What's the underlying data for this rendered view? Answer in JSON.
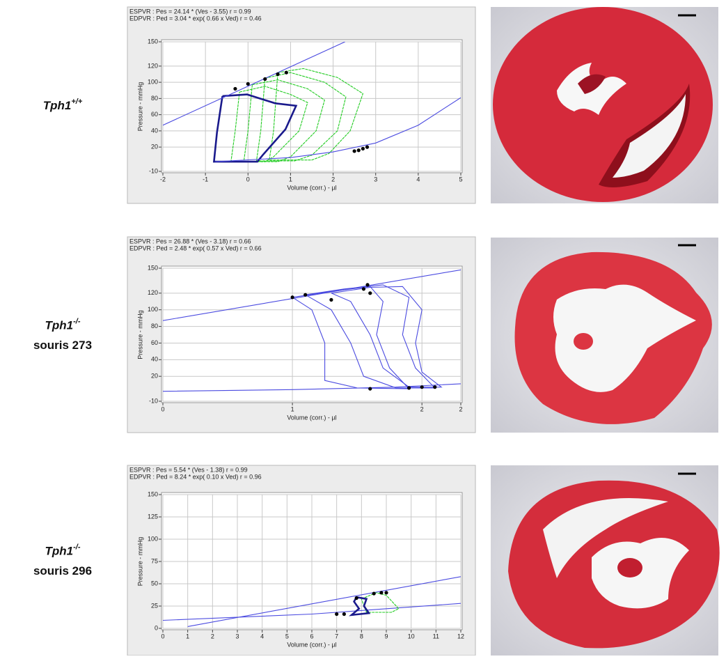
{
  "chart_data": [
    {
      "type": "line",
      "label": {
        "gene": "Tph1",
        "genotype": "+/+"
      },
      "annotations": [
        "ESPVR : Pes = 24.14 * (Ves - 3.55)     r = 0.99",
        "EDPVR : Ped =  3.04 * exp( 0.66 x Ved)     r = 0.46"
      ],
      "xlabel": "Volume (corr.) - µl",
      "ylabel": "Pressure - mmHg",
      "xlim": [
        -2,
        5
      ],
      "ylim": [
        -10,
        150
      ],
      "xticks": [
        -2,
        -1,
        0,
        1,
        2,
        3,
        4,
        5
      ],
      "yticks": [
        -10,
        20,
        40,
        60,
        80,
        100,
        120,
        150
      ],
      "grid": true,
      "series": [
        {
          "style": "line",
          "color": "#22cc22",
          "x": [
            -0.2,
            0.4,
            1.0,
            1.4,
            1.2,
            0.6,
            0.4,
            -0.4,
            -0.3,
            -0.2
          ],
          "values": [
            88,
            95,
            85,
            75,
            40,
            8,
            2,
            2,
            40,
            88
          ]
        },
        {
          "style": "line",
          "color": "#22cc22",
          "x": [
            0.1,
            0.7,
            1.4,
            1.8,
            1.6,
            1.0,
            0.7,
            -0.1,
            0.0,
            0.1
          ],
          "values": [
            97,
            103,
            92,
            78,
            40,
            8,
            2,
            2,
            40,
            97
          ]
        },
        {
          "style": "line",
          "color": "#22cc22",
          "x": [
            0.4,
            1.0,
            1.8,
            2.3,
            2.1,
            1.5,
            1.1,
            0.2,
            0.3,
            0.4
          ],
          "values": [
            105,
            112,
            100,
            82,
            40,
            10,
            3,
            3,
            40,
            105
          ]
        },
        {
          "style": "line",
          "color": "#22cc22",
          "x": [
            0.7,
            1.3,
            2.1,
            2.7,
            2.4,
            1.9,
            1.5,
            0.5,
            0.6,
            0.7
          ],
          "values": [
            112,
            117,
            106,
            86,
            40,
            12,
            4,
            4,
            40,
            112
          ]
        },
        {
          "style": "thick",
          "color": "#1a1a8c",
          "x": [
            -0.6,
            -0.02,
            0.64,
            1.13,
            0.88,
            0.36,
            0.22,
            -0.8,
            -0.73,
            -0.63,
            -0.6
          ],
          "values": [
            83,
            85,
            74,
            71,
            42,
            11,
            2,
            2,
            38,
            73,
            83
          ]
        },
        {
          "style": "line",
          "color": "#4a4ae0",
          "x": [
            -2,
            2.28
          ],
          "values": [
            47,
            150
          ]
        },
        {
          "style": "line",
          "color": "#4a4ae0",
          "x": [
            -0.77,
            1,
            2,
            3,
            4,
            5
          ],
          "values": [
            2,
            7,
            14,
            25,
            47,
            81
          ]
        },
        {
          "style": "markers",
          "color": "#000000",
          "x": [
            -0.3,
            0,
            0.4,
            0.7,
            0.9,
            2.5,
            2.6,
            2.7,
            2.8
          ],
          "values": [
            92,
            98,
            104,
            110,
            112,
            15,
            16,
            18,
            20
          ]
        }
      ]
    },
    {
      "type": "line",
      "label": {
        "gene": "Tph1",
        "genotype": "-/-",
        "mouse": "souris 273"
      },
      "annotations": [
        "ESPVR : Pes = 26.88 * (Ves - 3.18)     r = 0.66",
        "EDPVR : Ped =  2.48 * exp( 0.57 x Ved)     r = 0.66"
      ],
      "xlabel": "Volume (corr.) - µl",
      "ylabel": "Pressure - mmHg",
      "xlim": [
        0,
        2.3
      ],
      "ylim": [
        -10,
        150
      ],
      "xticks": [
        0,
        1,
        2,
        {
          "value": 2.3,
          "label": "2"
        }
      ],
      "yticks": [
        -10,
        20,
        40,
        60,
        80,
        100,
        120,
        150
      ],
      "grid": true,
      "series": [
        {
          "style": "line",
          "color": "#4a4ae0",
          "x": [
            1.0,
            1.3,
            1.6,
            1.7,
            1.65,
            1.75,
            1.9,
            1.5,
            1.25,
            1.25,
            1.15,
            1.0
          ],
          "values": [
            115,
            122,
            128,
            110,
            70,
            30,
            5,
            6,
            15,
            60,
            100,
            115
          ]
        },
        {
          "style": "line",
          "color": "#4a4ae0",
          "x": [
            1.1,
            1.4,
            1.7,
            1.9,
            1.85,
            1.95,
            2.1,
            1.8,
            1.55,
            1.45,
            1.3,
            1.1
          ],
          "values": [
            118,
            125,
            130,
            115,
            70,
            30,
            6,
            6,
            20,
            60,
            100,
            118
          ]
        },
        {
          "style": "line",
          "color": "#4a4ae0",
          "x": [
            1.3,
            1.6,
            1.85,
            2.0,
            1.95,
            2.0,
            2.15,
            1.9,
            1.7,
            1.6,
            1.45,
            1.3
          ],
          "values": [
            120,
            127,
            128,
            100,
            60,
            25,
            7,
            7,
            30,
            70,
            110,
            120
          ]
        },
        {
          "style": "line",
          "color": "#4a4ae0",
          "x": [
            0,
            2.3
          ],
          "values": [
            87,
            148
          ]
        },
        {
          "style": "line",
          "color": "#4a4ae0",
          "x": [
            0,
            1.0,
            1.8,
            2.3
          ],
          "values": [
            2,
            4,
            7,
            11
          ]
        },
        {
          "style": "markers",
          "color": "#000000",
          "x": [
            1.0,
            1.1,
            1.3,
            1.55,
            1.58,
            1.6,
            1.6,
            1.9,
            2.0,
            2.1
          ],
          "values": [
            115,
            118,
            112,
            125,
            130,
            120,
            5,
            6,
            7,
            7
          ]
        }
      ]
    },
    {
      "type": "line",
      "label": {
        "gene": "Tph1",
        "genotype": "-/-",
        "mouse": "souris 296"
      },
      "annotations": [
        "ESPVR : Pes =  5.54 * (Ves - 1.38)     r = 0.99",
        "EDPVR : Ped =  8.24 * exp( 0.10 x Ved)     r = 0.96"
      ],
      "xlabel": "Volume (corr.) - µl",
      "ylabel": "Pressure - mmHg",
      "xlim": [
        0,
        12
      ],
      "ylim": [
        0,
        150
      ],
      "xticks": [
        0,
        1,
        2,
        3,
        4,
        5,
        6,
        7,
        8,
        9,
        10,
        11,
        12
      ],
      "yticks": [
        0,
        25,
        50,
        75,
        100,
        125,
        150
      ],
      "grid": true,
      "series": [
        {
          "style": "line",
          "color": "#4a4ae0",
          "x": [
            1.0,
            12
          ],
          "values": [
            2,
            58
          ]
        },
        {
          "style": "line",
          "color": "#4a4ae0",
          "x": [
            0,
            6,
            12
          ],
          "values": [
            9,
            16,
            28
          ]
        },
        {
          "style": "line",
          "color": "#22cc22",
          "x": [
            8.0,
            8.6,
            9.0,
            9.5,
            9.2,
            8.2,
            8.1,
            8.0
          ],
          "values": [
            33,
            40,
            37,
            22,
            18,
            18,
            25,
            33
          ]
        },
        {
          "style": "thick",
          "color": "#1a1a8c",
          "x": [
            7.8,
            8.2,
            8.1,
            8.3,
            7.6,
            7.9,
            7.7,
            7.8
          ],
          "values": [
            35,
            33,
            25,
            17,
            15,
            22,
            30,
            35
          ]
        },
        {
          "style": "markers",
          "color": "#000000",
          "x": [
            7.0,
            7.3,
            7.8,
            8.5,
            8.8,
            9.0
          ],
          "values": [
            16,
            16,
            34,
            39,
            40,
            40
          ]
        }
      ]
    }
  ]
}
